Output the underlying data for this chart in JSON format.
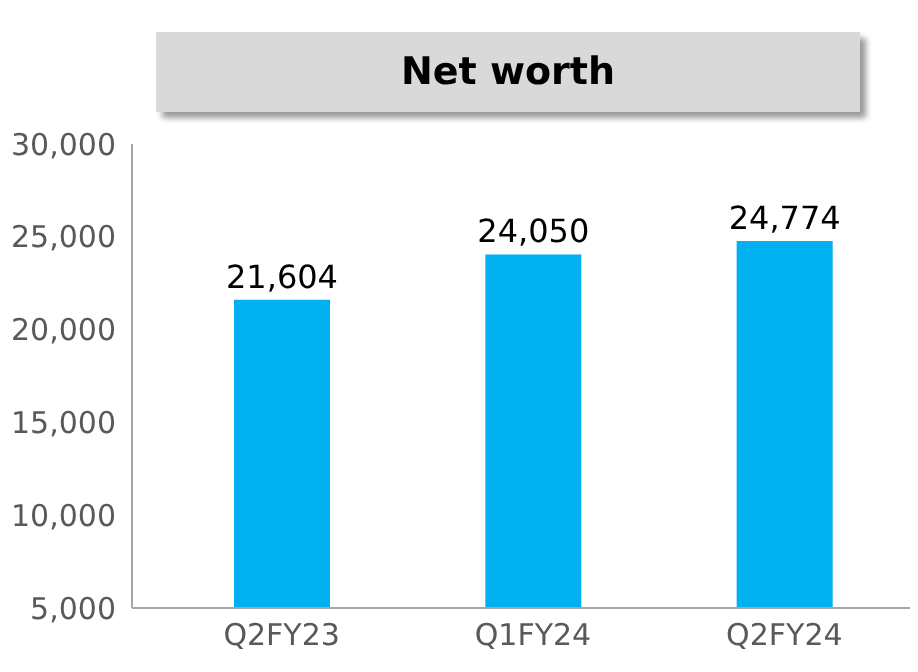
{
  "chart_data": {
    "type": "bar",
    "title": "Net worth",
    "categories": [
      "Q2FY23",
      "Q1FY24",
      "Q2FY24"
    ],
    "values": [
      21604,
      24050,
      24774
    ],
    "color": "#00b0f0",
    "ylim": [
      5000,
      30000
    ],
    "yticks": [
      {
        "value": 5000,
        "label": "5,000"
      },
      {
        "value": 10000,
        "label": "10,000"
      },
      {
        "value": 15000,
        "label": "15,000"
      },
      {
        "value": 20000,
        "label": "20,000"
      },
      {
        "value": 25000,
        "label": "25,000"
      },
      {
        "value": 30000,
        "label": "30,000"
      }
    ],
    "value_labels": [
      "21,604",
      "24,050",
      "24,774"
    ],
    "grid": false,
    "legend": false
  }
}
